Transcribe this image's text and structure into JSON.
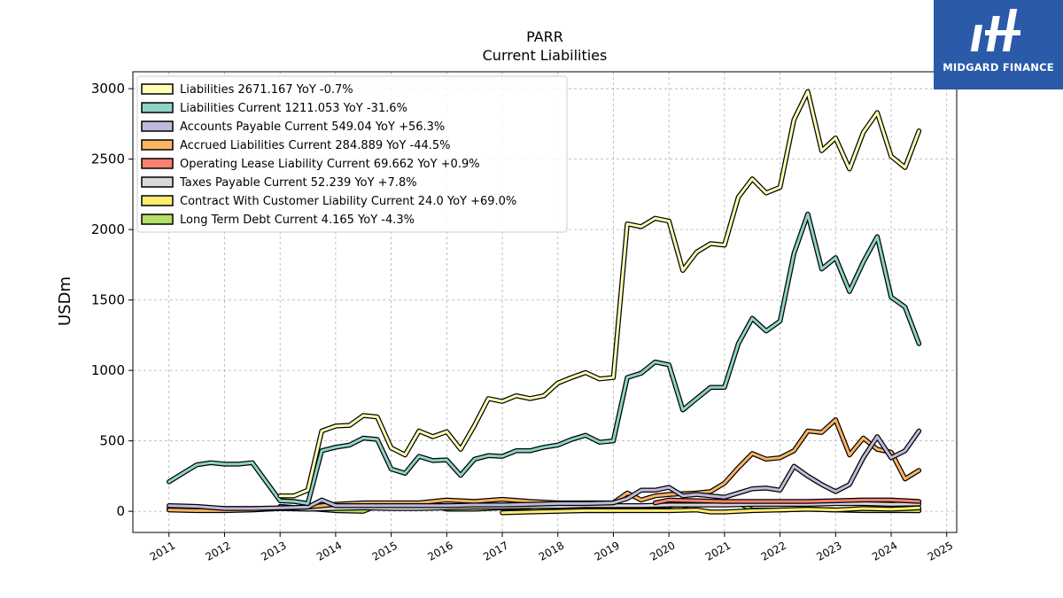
{
  "chart_data": {
    "type": "line",
    "title": "PARR",
    "subtitle": "Current  Liabilities",
    "ylabel": "USDm",
    "xlabel": "",
    "xlim": [
      2010.35,
      2025.18
    ],
    "ylim": [
      -150,
      3120
    ],
    "x_ticks": [
      2011,
      2012,
      2013,
      2014,
      2015,
      2016,
      2017,
      2018,
      2019,
      2020,
      2021,
      2022,
      2023,
      2024,
      2025
    ],
    "y_ticks": [
      0,
      500,
      1000,
      1500,
      2000,
      2500,
      3000
    ],
    "grid": true,
    "legend_position": "top-left",
    "series": [
      {
        "name": "Liabilities",
        "legend_label": "Liabilities  2671.167 YoY -0.7%",
        "color": "#ffffb3",
        "points": [
          [
            2013.0,
            110
          ],
          [
            2013.25,
            110
          ],
          [
            2013.5,
            150
          ],
          [
            2013.75,
            570
          ],
          [
            2014.0,
            605
          ],
          [
            2014.25,
            610
          ],
          [
            2014.5,
            680
          ],
          [
            2014.75,
            670
          ],
          [
            2015.0,
            450
          ],
          [
            2015.25,
            400
          ],
          [
            2015.5,
            570
          ],
          [
            2015.75,
            530
          ],
          [
            2016.0,
            565
          ],
          [
            2016.25,
            440
          ],
          [
            2016.5,
            610
          ],
          [
            2016.75,
            800
          ],
          [
            2017.0,
            780
          ],
          [
            2017.25,
            820
          ],
          [
            2017.5,
            800
          ],
          [
            2017.75,
            820
          ],
          [
            2018.0,
            910
          ],
          [
            2018.25,
            950
          ],
          [
            2018.5,
            985
          ],
          [
            2018.75,
            940
          ],
          [
            2019.0,
            950
          ],
          [
            2019.25,
            2040
          ],
          [
            2019.5,
            2020
          ],
          [
            2019.75,
            2080
          ],
          [
            2020.0,
            2060
          ],
          [
            2020.25,
            1710
          ],
          [
            2020.5,
            1840
          ],
          [
            2020.75,
            1900
          ],
          [
            2021.0,
            1890
          ],
          [
            2021.25,
            2230
          ],
          [
            2021.5,
            2360
          ],
          [
            2021.75,
            2260
          ],
          [
            2022.0,
            2300
          ],
          [
            2022.25,
            2780
          ],
          [
            2022.5,
            2980
          ],
          [
            2022.75,
            2560
          ],
          [
            2023.0,
            2650
          ],
          [
            2023.25,
            2430
          ],
          [
            2023.5,
            2690
          ],
          [
            2023.75,
            2830
          ],
          [
            2024.0,
            2520
          ],
          [
            2024.25,
            2440
          ],
          [
            2024.5,
            2700
          ]
        ]
      },
      {
        "name": "Liabilities Current",
        "legend_label": "Liabilities Current  1211.053 YoY -31.6%",
        "color": "#8dd3c7",
        "points": [
          [
            2011.0,
            210
          ],
          [
            2011.25,
            270
          ],
          [
            2011.5,
            330
          ],
          [
            2011.75,
            345
          ],
          [
            2012.0,
            335
          ],
          [
            2012.25,
            335
          ],
          [
            2012.5,
            345
          ],
          [
            2012.75,
            210
          ],
          [
            2013.0,
            75
          ],
          [
            2013.25,
            70
          ],
          [
            2013.5,
            55
          ],
          [
            2013.75,
            430
          ],
          [
            2014.0,
            455
          ],
          [
            2014.25,
            470
          ],
          [
            2014.5,
            520
          ],
          [
            2014.75,
            510
          ],
          [
            2015.0,
            300
          ],
          [
            2015.25,
            270
          ],
          [
            2015.5,
            390
          ],
          [
            2015.75,
            360
          ],
          [
            2016.0,
            365
          ],
          [
            2016.25,
            255
          ],
          [
            2016.5,
            370
          ],
          [
            2016.75,
            395
          ],
          [
            2017.0,
            390
          ],
          [
            2017.25,
            430
          ],
          [
            2017.5,
            430
          ],
          [
            2017.75,
            455
          ],
          [
            2018.0,
            470
          ],
          [
            2018.25,
            510
          ],
          [
            2018.5,
            540
          ],
          [
            2018.75,
            490
          ],
          [
            2019.0,
            500
          ],
          [
            2019.25,
            950
          ],
          [
            2019.5,
            980
          ],
          [
            2019.75,
            1060
          ],
          [
            2020.0,
            1040
          ],
          [
            2020.25,
            720
          ],
          [
            2020.5,
            800
          ],
          [
            2020.75,
            880
          ],
          [
            2021.0,
            880
          ],
          [
            2021.25,
            1190
          ],
          [
            2021.5,
            1370
          ],
          [
            2021.75,
            1280
          ],
          [
            2022.0,
            1350
          ],
          [
            2022.25,
            1830
          ],
          [
            2022.5,
            2110
          ],
          [
            2022.75,
            1720
          ],
          [
            2023.0,
            1800
          ],
          [
            2023.25,
            1560
          ],
          [
            2023.5,
            1770
          ],
          [
            2023.75,
            1950
          ],
          [
            2024.0,
            1520
          ],
          [
            2024.25,
            1450
          ],
          [
            2024.5,
            1190
          ]
        ]
      },
      {
        "name": "Accounts Payable Current",
        "legend_label": "Accounts Payable Current  549.04 YoY +56.3%",
        "color": "#bebada",
        "points": [
          [
            2011.0,
            40
          ],
          [
            2011.5,
            35
          ],
          [
            2012.0,
            20
          ],
          [
            2012.5,
            20
          ],
          [
            2013.0,
            25
          ],
          [
            2013.5,
            30
          ],
          [
            2013.75,
            80
          ],
          [
            2014.0,
            40
          ],
          [
            2014.5,
            40
          ],
          [
            2015.0,
            40
          ],
          [
            2015.5,
            40
          ],
          [
            2016.0,
            40
          ],
          [
            2016.5,
            45
          ],
          [
            2017.0,
            45
          ],
          [
            2017.5,
            50
          ],
          [
            2018.0,
            55
          ],
          [
            2018.5,
            55
          ],
          [
            2019.0,
            60
          ],
          [
            2019.25,
            90
          ],
          [
            2019.5,
            150
          ],
          [
            2019.75,
            150
          ],
          [
            2020.0,
            170
          ],
          [
            2020.25,
            110
          ],
          [
            2020.5,
            120
          ],
          [
            2020.75,
            110
          ],
          [
            2021.0,
            100
          ],
          [
            2021.25,
            130
          ],
          [
            2021.5,
            160
          ],
          [
            2021.75,
            165
          ],
          [
            2022.0,
            150
          ],
          [
            2022.25,
            320
          ],
          [
            2022.5,
            250
          ],
          [
            2022.75,
            190
          ],
          [
            2023.0,
            140
          ],
          [
            2023.25,
            190
          ],
          [
            2023.5,
            380
          ],
          [
            2023.75,
            530
          ],
          [
            2024.0,
            380
          ],
          [
            2024.25,
            430
          ],
          [
            2024.5,
            570
          ]
        ]
      },
      {
        "name": "Accrued Liabilities Current",
        "legend_label": "Accrued Liabilities Current  284.889 YoY -44.5%",
        "color": "#fdb462",
        "points": [
          [
            2011.0,
            10
          ],
          [
            2011.5,
            5
          ],
          [
            2012.0,
            5
          ],
          [
            2012.5,
            10
          ],
          [
            2013.0,
            20
          ],
          [
            2013.5,
            30
          ],
          [
            2014.0,
            50
          ],
          [
            2014.5,
            60
          ],
          [
            2015.0,
            60
          ],
          [
            2015.5,
            60
          ],
          [
            2016.0,
            80
          ],
          [
            2016.5,
            70
          ],
          [
            2017.0,
            85
          ],
          [
            2017.5,
            70
          ],
          [
            2018.0,
            60
          ],
          [
            2018.5,
            60
          ],
          [
            2019.0,
            60
          ],
          [
            2019.25,
            130
          ],
          [
            2019.5,
            80
          ],
          [
            2019.75,
            110
          ],
          [
            2020.0,
            120
          ],
          [
            2020.25,
            125
          ],
          [
            2020.5,
            130
          ],
          [
            2020.75,
            140
          ],
          [
            2021.0,
            200
          ],
          [
            2021.25,
            310
          ],
          [
            2021.5,
            410
          ],
          [
            2021.75,
            370
          ],
          [
            2022.0,
            380
          ],
          [
            2022.25,
            430
          ],
          [
            2022.5,
            570
          ],
          [
            2022.75,
            560
          ],
          [
            2023.0,
            650
          ],
          [
            2023.25,
            400
          ],
          [
            2023.5,
            520
          ],
          [
            2023.75,
            440
          ],
          [
            2024.0,
            420
          ],
          [
            2024.25,
            230
          ],
          [
            2024.5,
            290
          ]
        ]
      },
      {
        "name": "Operating Lease Liability Current",
        "legend_label": "Operating Lease Liability Current  69.662 YoY +0.9%",
        "color": "#fb8072",
        "points": [
          [
            2019.75,
            60
          ],
          [
            2020.0,
            80
          ],
          [
            2020.5,
            75
          ],
          [
            2021.0,
            70
          ],
          [
            2021.5,
            70
          ],
          [
            2022.0,
            70
          ],
          [
            2022.5,
            70
          ],
          [
            2023.0,
            75
          ],
          [
            2023.5,
            80
          ],
          [
            2024.0,
            80
          ],
          [
            2024.5,
            70
          ]
        ]
      },
      {
        "name": "Taxes Payable Current",
        "legend_label": "Taxes Payable Current  52.239 YoY +7.8%",
        "color": "#d9d9d9",
        "points": [
          [
            2011.0,
            20
          ],
          [
            2011.5,
            25
          ],
          [
            2012.0,
            20
          ],
          [
            2012.5,
            20
          ],
          [
            2013.0,
            20
          ],
          [
            2013.5,
            15
          ],
          [
            2014.0,
            20
          ],
          [
            2014.5,
            25
          ],
          [
            2015.0,
            20
          ],
          [
            2015.5,
            20
          ],
          [
            2016.0,
            25
          ],
          [
            2016.5,
            30
          ],
          [
            2017.0,
            30
          ],
          [
            2017.5,
            35
          ],
          [
            2018.0,
            35
          ],
          [
            2018.5,
            40
          ],
          [
            2019.0,
            40
          ],
          [
            2019.5,
            40
          ],
          [
            2020.0,
            45
          ],
          [
            2020.5,
            45
          ],
          [
            2021.0,
            45
          ],
          [
            2021.5,
            50
          ],
          [
            2022.0,
            50
          ],
          [
            2022.5,
            50
          ],
          [
            2023.0,
            55
          ],
          [
            2023.5,
            55
          ],
          [
            2024.0,
            50
          ],
          [
            2024.5,
            52
          ]
        ]
      },
      {
        "name": "Contract With Customer Liability Current",
        "legend_label": "Contract With Customer Liability Current  24.0 YoY +69.0%",
        "color": "#ffed6f",
        "points": [
          [
            2017.0,
            -10
          ],
          [
            2017.5,
            -5
          ],
          [
            2018.0,
            0
          ],
          [
            2018.5,
            5
          ],
          [
            2019.0,
            5
          ],
          [
            2019.5,
            5
          ],
          [
            2020.0,
            5
          ],
          [
            2020.5,
            10
          ],
          [
            2020.75,
            -5
          ],
          [
            2021.0,
            -5
          ],
          [
            2021.25,
            0
          ],
          [
            2021.5,
            5
          ],
          [
            2022.0,
            10
          ],
          [
            2022.5,
            15
          ],
          [
            2023.0,
            10
          ],
          [
            2023.5,
            20
          ],
          [
            2024.0,
            15
          ],
          [
            2024.5,
            24
          ]
        ]
      },
      {
        "name": "Long Term Debt Current",
        "legend_label": "Long Term Debt Current  4.165 YoY -4.3%",
        "color": "#b3de69",
        "points": [
          [
            2013.0,
            35
          ],
          [
            2013.5,
            20
          ],
          [
            2014.0,
            5
          ],
          [
            2014.5,
            0
          ],
          [
            2014.75,
            40
          ],
          [
            2015.0,
            30
          ],
          [
            2015.5,
            50
          ],
          [
            2015.75,
            45
          ],
          [
            2016.0,
            15
          ],
          [
            2016.5,
            15
          ],
          [
            2017.0,
            25
          ],
          [
            2017.5,
            25
          ],
          [
            2018.0,
            5
          ],
          [
            2018.5,
            5
          ],
          [
            2019.0,
            5
          ],
          [
            2019.5,
            10
          ],
          [
            2020.0,
            10
          ],
          [
            2020.5,
            60
          ],
          [
            2021.0,
            60
          ],
          [
            2021.25,
            60
          ],
          [
            2021.5,
            10
          ],
          [
            2022.0,
            10
          ],
          [
            2022.5,
            15
          ],
          [
            2023.0,
            10
          ],
          [
            2023.5,
            5
          ],
          [
            2024.0,
            5
          ],
          [
            2024.5,
            4
          ]
        ]
      }
    ]
  },
  "logo": {
    "text": "MIDGARD FINANCE",
    "background": "#2b5aa8"
  }
}
